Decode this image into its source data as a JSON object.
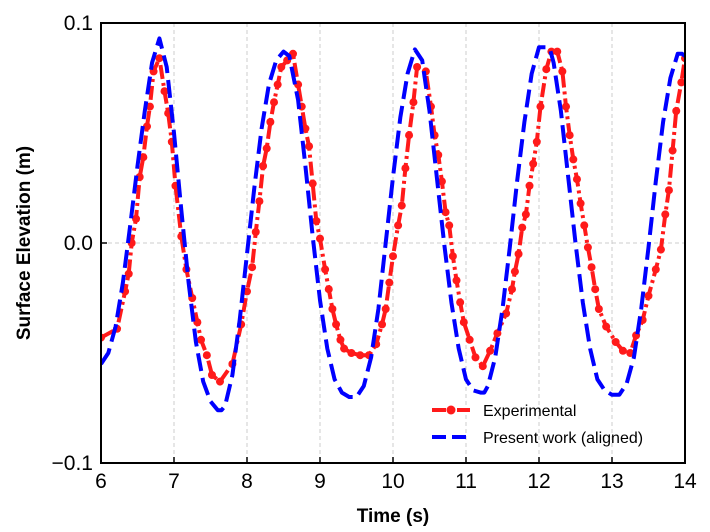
{
  "chart_data": {
    "type": "line",
    "title": "",
    "xlabel": "Time (s)",
    "ylabel": "Surface Elevation (m)",
    "xlim": [
      6,
      14
    ],
    "ylim": [
      -0.1,
      0.1
    ],
    "xticks": [
      6,
      7,
      8,
      9,
      10,
      11,
      12,
      13,
      14
    ],
    "yticks": [
      -0.1,
      0.0,
      0.1
    ],
    "xtick_labels": [
      "6",
      "7",
      "8",
      "9",
      "10",
      "11",
      "12",
      "13",
      "14"
    ],
    "ytick_labels": [
      "−0.1",
      "0.0",
      "0.1"
    ],
    "grid": true,
    "legend_position": "lower-right",
    "colors": {
      "experimental": "#ff1a1a",
      "present": "#0000ff"
    },
    "series": [
      {
        "name": "Experimental",
        "style": "dash-dot-marker",
        "x": [
          6.0,
          6.22,
          6.33,
          6.38,
          6.42,
          6.48,
          6.53,
          6.58,
          6.63,
          6.67,
          6.72,
          6.8,
          6.87,
          6.92,
          6.97,
          7.02,
          7.1,
          7.17,
          7.25,
          7.32,
          7.37,
          7.45,
          7.52,
          7.63,
          7.8,
          7.92,
          8.0,
          8.07,
          8.12,
          8.17,
          8.22,
          8.27,
          8.32,
          8.37,
          8.42,
          8.47,
          8.55,
          8.63,
          8.7,
          8.75,
          8.8,
          8.85,
          8.9,
          8.95,
          9.0,
          9.07,
          9.12,
          9.17,
          9.22,
          9.28,
          9.33,
          9.43,
          9.55,
          9.67,
          9.77,
          9.85,
          9.9,
          9.95,
          10.0,
          10.07,
          10.12,
          10.17,
          10.22,
          10.28,
          10.33,
          10.45,
          10.52,
          10.57,
          10.62,
          10.67,
          10.72,
          10.77,
          10.82,
          10.87,
          10.92,
          10.97,
          11.05,
          11.13,
          11.23,
          11.33,
          11.43,
          11.55,
          11.63,
          11.67,
          11.72,
          11.77,
          11.82,
          11.87,
          11.92,
          11.97,
          12.02,
          12.1,
          12.17,
          12.25,
          12.32,
          12.37,
          12.42,
          12.47,
          12.52,
          12.57,
          12.62,
          12.67,
          12.72,
          12.77,
          12.82,
          12.92,
          13.05,
          13.15,
          13.25,
          13.33,
          13.42,
          13.5,
          13.6,
          13.67,
          13.73,
          13.78,
          13.83,
          13.88,
          13.95,
          14.0
        ],
        "y": [
          -0.043,
          -0.039,
          -0.022,
          -0.014,
          0.0,
          0.011,
          0.03,
          0.039,
          0.053,
          0.062,
          0.078,
          0.084,
          0.069,
          0.059,
          0.046,
          0.026,
          0.003,
          -0.012,
          -0.025,
          -0.036,
          -0.044,
          -0.051,
          -0.06,
          -0.063,
          -0.055,
          -0.037,
          -0.022,
          -0.011,
          0.005,
          0.019,
          0.035,
          0.043,
          0.055,
          0.064,
          0.072,
          0.08,
          0.083,
          0.086,
          0.072,
          0.062,
          0.052,
          0.044,
          0.027,
          0.01,
          0.002,
          -0.012,
          -0.021,
          -0.03,
          -0.037,
          -0.044,
          -0.048,
          -0.05,
          -0.051,
          -0.051,
          -0.046,
          -0.037,
          -0.03,
          -0.018,
          -0.006,
          0.008,
          0.017,
          0.034,
          0.049,
          0.064,
          0.08,
          0.078,
          0.062,
          0.049,
          0.04,
          0.028,
          0.014,
          0.008,
          -0.006,
          -0.017,
          -0.027,
          -0.036,
          -0.044,
          -0.052,
          -0.056,
          -0.049,
          -0.041,
          -0.032,
          -0.021,
          -0.013,
          -0.005,
          0.007,
          0.013,
          0.026,
          0.036,
          0.046,
          0.062,
          0.079,
          0.087,
          0.087,
          0.078,
          0.062,
          0.049,
          0.038,
          0.029,
          0.018,
          0.008,
          -0.002,
          -0.011,
          -0.021,
          -0.03,
          -0.038,
          -0.045,
          -0.049,
          -0.05,
          -0.042,
          -0.035,
          -0.024,
          -0.012,
          -0.003,
          0.013,
          0.024,
          0.042,
          0.06,
          0.073,
          0.084
        ]
      },
      {
        "name": "Present work (aligned)",
        "style": "dashed",
        "x": [
          6.0,
          6.1,
          6.2,
          6.3,
          6.4,
          6.5,
          6.6,
          6.7,
          6.8,
          6.9,
          7.0,
          7.1,
          7.2,
          7.3,
          7.4,
          7.5,
          7.6,
          7.65,
          7.7,
          7.8,
          7.9,
          8.0,
          8.1,
          8.2,
          8.3,
          8.4,
          8.5,
          8.58,
          8.7,
          8.8,
          8.9,
          9.0,
          9.1,
          9.2,
          9.3,
          9.4,
          9.5,
          9.6,
          9.7,
          9.8,
          9.9,
          10.0,
          10.1,
          10.2,
          10.3,
          10.4,
          10.5,
          10.6,
          10.7,
          10.8,
          10.9,
          11.0,
          11.1,
          11.2,
          11.25,
          11.3,
          11.4,
          11.5,
          11.6,
          11.7,
          11.8,
          11.9,
          12.0,
          12.1,
          12.15,
          12.2,
          12.3,
          12.4,
          12.5,
          12.6,
          12.7,
          12.8,
          12.9,
          13.0,
          13.1,
          13.2,
          13.3,
          13.4,
          13.5,
          13.6,
          13.7,
          13.8,
          13.9,
          13.96,
          14.0
        ],
        "y": [
          -0.055,
          -0.05,
          -0.038,
          -0.018,
          0.008,
          0.035,
          0.06,
          0.082,
          0.093,
          0.08,
          0.05,
          0.015,
          -0.018,
          -0.045,
          -0.063,
          -0.072,
          -0.076,
          -0.076,
          -0.074,
          -0.06,
          -0.035,
          -0.005,
          0.025,
          0.052,
          0.072,
          0.083,
          0.087,
          0.085,
          0.065,
          0.035,
          0.003,
          -0.026,
          -0.048,
          -0.062,
          -0.068,
          -0.07,
          -0.07,
          -0.065,
          -0.052,
          -0.03,
          0.0,
          0.03,
          0.057,
          0.077,
          0.088,
          0.083,
          0.06,
          0.03,
          0.0,
          -0.027,
          -0.048,
          -0.062,
          -0.067,
          -0.068,
          -0.068,
          -0.065,
          -0.052,
          -0.03,
          -0.002,
          0.028,
          0.055,
          0.077,
          0.089,
          0.089,
          0.088,
          0.082,
          0.06,
          0.03,
          0.0,
          -0.027,
          -0.048,
          -0.062,
          -0.067,
          -0.069,
          -0.069,
          -0.064,
          -0.052,
          -0.03,
          -0.002,
          0.028,
          0.055,
          0.075,
          0.086,
          0.086,
          0.085
        ]
      }
    ]
  }
}
